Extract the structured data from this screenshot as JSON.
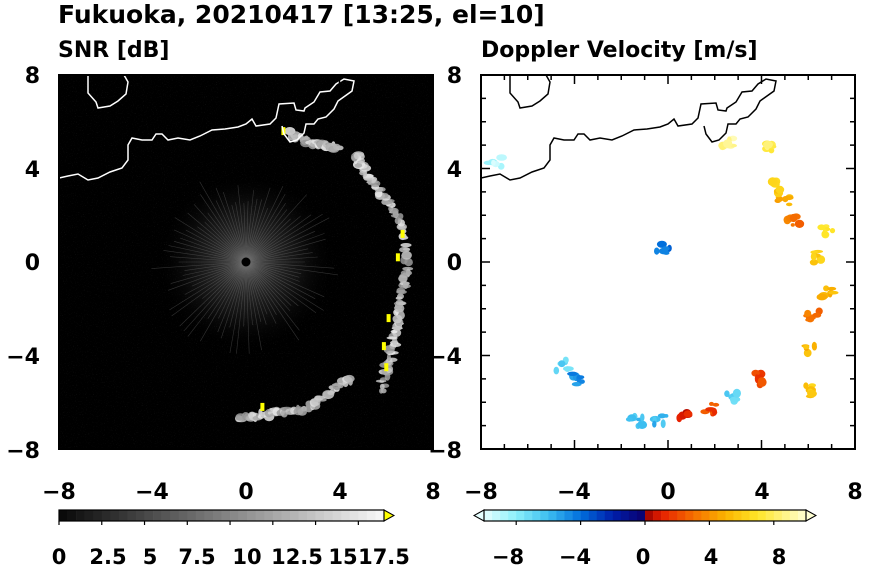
{
  "title": "Fukuoka, 20210417 [13:25, el=10]",
  "chart_data": [
    {
      "type": "heatmap",
      "title": "SNR [dB]",
      "xlim": [
        -8,
        8
      ],
      "ylim": [
        -8,
        8
      ],
      "x_ticks": [
        "−8",
        "−4",
        "0",
        "4",
        "8"
      ],
      "y_ticks": [
        "8",
        "4",
        "0",
        "−4",
        "−8"
      ],
      "colorbar": {
        "min": 0,
        "max": 19,
        "step": 0.5,
        "extend": "max",
        "tick_labels": [
          "0",
          "2.5",
          "5",
          "7.5",
          "10",
          "12.5",
          "15",
          "17.5"
        ],
        "tick_values": [
          0,
          2.5,
          5,
          7.5,
          10,
          12.5,
          15,
          17.5
        ]
      },
      "echo_bands": [
        {
          "x": [
            -0.3,
            0.5,
            1.5,
            2.5,
            3.5,
            4.5
          ],
          "y": [
            -6.7,
            -6.6,
            -6.4,
            -6.3,
            -5.6,
            -5.0
          ]
        },
        {
          "x": [
            5.8,
            6.1,
            6.4,
            6.6,
            6.9,
            6.7,
            6.1,
            5.5,
            5.0,
            4.6
          ],
          "y": [
            -5.5,
            -4.3,
            -3.0,
            -1.8,
            -0.5,
            1.5,
            2.5,
            3.3,
            4.0,
            4.7
          ]
        },
        {
          "x": [
            1.8,
            2.6,
            3.4,
            4.0
          ],
          "y": [
            5.5,
            5.1,
            5.0,
            4.8
          ]
        }
      ],
      "noise_center": [
        0,
        0
      ],
      "colors": {
        "background": "#000000",
        "coastline": "#ffffff",
        "max_color": "#ffff00"
      }
    },
    {
      "type": "heatmap",
      "title": "Doppler Velocity [m/s]",
      "xlim": [
        -8,
        8
      ],
      "ylim": [
        -8,
        8
      ],
      "x_ticks": [
        "−8",
        "−4",
        "0",
        "4",
        "8"
      ],
      "y_ticks": [
        "8",
        "4",
        "0",
        "−4",
        "−8"
      ],
      "colorbar": {
        "min": -10,
        "max": 10,
        "step": 0.5,
        "extend": "both",
        "tick_labels": [
          "−8",
          "−4",
          "0",
          "4",
          "8"
        ],
        "tick_values": [
          -8,
          -4,
          0,
          4,
          8
        ]
      },
      "echo_patches": [
        {
          "x": -1.4,
          "y": -6.8,
          "v": -6
        },
        {
          "x": -0.3,
          "y": -6.7,
          "v": -6
        },
        {
          "x": 0.7,
          "y": -6.5,
          "v": 1
        },
        {
          "x": 1.8,
          "y": -6.3,
          "v": 2
        },
        {
          "x": 2.8,
          "y": -5.7,
          "v": -7
        },
        {
          "x": 4.0,
          "y": -5.0,
          "v": 2
        },
        {
          "x": 5.9,
          "y": -5.5,
          "v": 6
        },
        {
          "x": 6.0,
          "y": -3.7,
          "v": 5
        },
        {
          "x": 6.2,
          "y": -2.3,
          "v": 3
        },
        {
          "x": 6.8,
          "y": -1.3,
          "v": 5
        },
        {
          "x": 6.5,
          "y": 0.2,
          "v": 6
        },
        {
          "x": 6.8,
          "y": 1.3,
          "v": 7
        },
        {
          "x": 5.4,
          "y": 1.8,
          "v": 3
        },
        {
          "x": 4.9,
          "y": 2.6,
          "v": 5
        },
        {
          "x": 4.6,
          "y": 3.2,
          "v": 6
        },
        {
          "x": -7.4,
          "y": 4.3,
          "v": -9
        },
        {
          "x": -4.5,
          "y": -4.4,
          "v": -7
        },
        {
          "x": -3.8,
          "y": -5.0,
          "v": -5
        },
        {
          "x": 4.3,
          "y": 5.0,
          "v": 8
        },
        {
          "x": 2.5,
          "y": 5.1,
          "v": 9
        },
        {
          "x": -0.2,
          "y": 0.6,
          "v": -4
        }
      ],
      "colors": {
        "background": "#ffffff",
        "coastline": "#000000"
      }
    }
  ]
}
